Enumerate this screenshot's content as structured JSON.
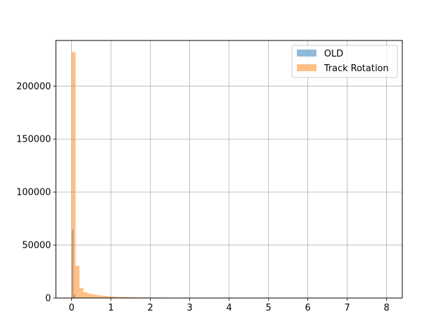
{
  "chart_data": {
    "type": "bar",
    "subtype": "overlapping-histogram",
    "title": "",
    "xlabel": "",
    "ylabel": "",
    "xlim": [
      -0.4,
      8.4
    ],
    "ylim": [
      0,
      243000
    ],
    "xticks": [
      0,
      1,
      2,
      3,
      4,
      5,
      6,
      7,
      8
    ],
    "yticks": [
      0,
      50000,
      100000,
      150000,
      200000
    ],
    "grid": true,
    "legend": "top-right",
    "series": [
      {
        "name": "OLD",
        "color": "#1f77b4",
        "opacity": 0.5,
        "bins": [
          {
            "x0": 0.0,
            "x1": 0.05,
            "count": 64500
          },
          {
            "x0": 0.05,
            "x1": 0.1,
            "count": 3000
          }
        ]
      },
      {
        "name": "Track Rotation",
        "color": "#ff7f0e",
        "opacity": 0.5,
        "bins": [
          {
            "x0": 0.0,
            "x1": 0.1,
            "count": 232000
          },
          {
            "x0": 0.1,
            "x1": 0.2,
            "count": 30500
          },
          {
            "x0": 0.2,
            "x1": 0.3,
            "count": 9500
          },
          {
            "x0": 0.3,
            "x1": 0.4,
            "count": 5500
          },
          {
            "x0": 0.4,
            "x1": 0.5,
            "count": 4200
          },
          {
            "x0": 0.5,
            "x1": 0.6,
            "count": 3500
          },
          {
            "x0": 0.6,
            "x1": 0.7,
            "count": 2800
          },
          {
            "x0": 0.7,
            "x1": 0.8,
            "count": 2300
          },
          {
            "x0": 0.8,
            "x1": 0.9,
            "count": 1900
          },
          {
            "x0": 0.9,
            "x1": 1.0,
            "count": 1600
          },
          {
            "x0": 1.0,
            "x1": 1.1,
            "count": 1400
          },
          {
            "x0": 1.1,
            "x1": 1.2,
            "count": 1200
          },
          {
            "x0": 1.2,
            "x1": 1.3,
            "count": 1050
          },
          {
            "x0": 1.3,
            "x1": 1.4,
            "count": 950
          },
          {
            "x0": 1.4,
            "x1": 1.5,
            "count": 850
          },
          {
            "x0": 1.5,
            "x1": 1.6,
            "count": 750
          },
          {
            "x0": 1.6,
            "x1": 1.7,
            "count": 680
          },
          {
            "x0": 1.7,
            "x1": 1.8,
            "count": 620
          },
          {
            "x0": 1.8,
            "x1": 1.9,
            "count": 560
          },
          {
            "x0": 1.9,
            "x1": 2.0,
            "count": 510
          },
          {
            "x0": 2.0,
            "x1": 2.2,
            "count": 450
          },
          {
            "x0": 2.2,
            "x1": 2.4,
            "count": 400
          },
          {
            "x0": 2.4,
            "x1": 2.6,
            "count": 350
          },
          {
            "x0": 2.6,
            "x1": 2.8,
            "count": 310
          },
          {
            "x0": 2.8,
            "x1": 3.0,
            "count": 280
          },
          {
            "x0": 3.0,
            "x1": 3.2,
            "count": 250
          },
          {
            "x0": 3.2,
            "x1": 3.4,
            "count": 220
          },
          {
            "x0": 3.4,
            "x1": 3.6,
            "count": 180
          }
        ]
      }
    ]
  }
}
